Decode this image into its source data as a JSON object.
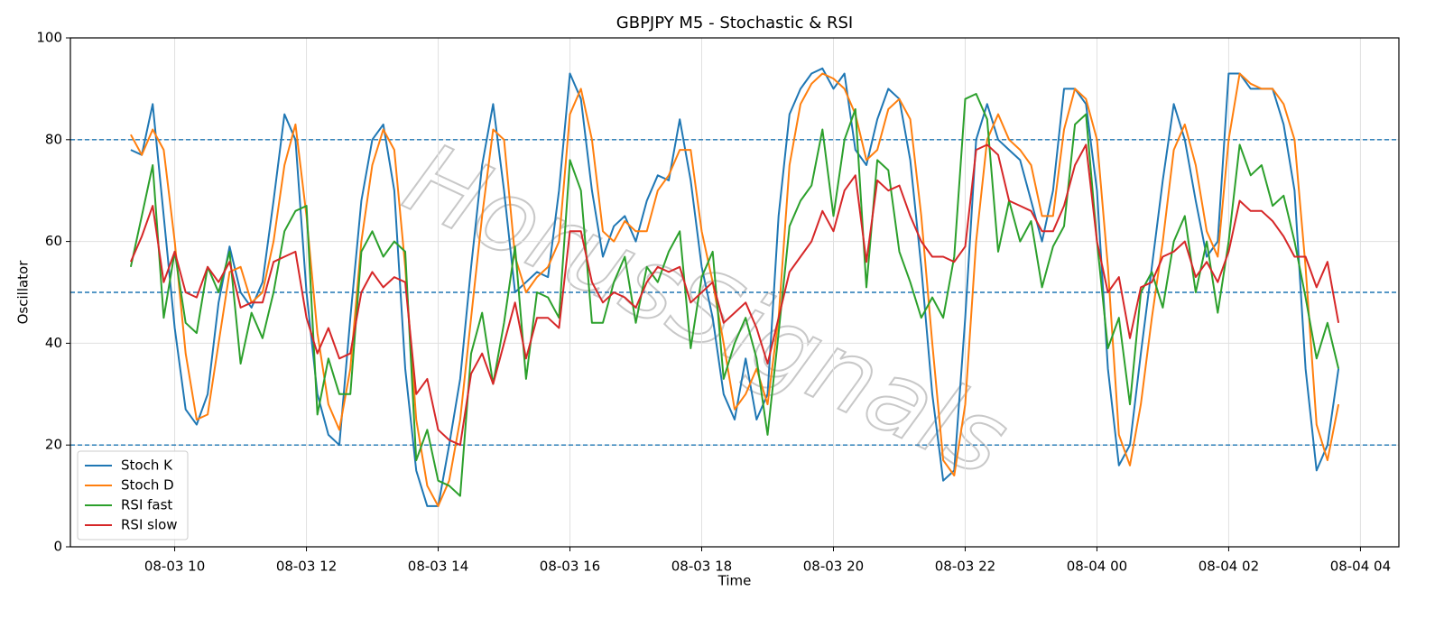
{
  "chart_data": {
    "type": "line",
    "title": "GBPJPY M5 - Stochastic & RSI",
    "xlabel": "Time",
    "ylabel": "Oscillator",
    "watermark": "HorusSignals",
    "x": [
      "08-03 09:20",
      "08-03 09:30",
      "08-03 09:40",
      "08-03 09:50",
      "08-03 10:00",
      "08-03 10:10",
      "08-03 10:20",
      "08-03 10:30",
      "08-03 10:40",
      "08-03 10:50",
      "08-03 11:00",
      "08-03 11:10",
      "08-03 11:20",
      "08-03 11:30",
      "08-03 11:40",
      "08-03 11:50",
      "08-03 12:00",
      "08-03 12:10",
      "08-03 12:20",
      "08-03 12:30",
      "08-03 12:40",
      "08-03 12:50",
      "08-03 13:00",
      "08-03 13:10",
      "08-03 13:20",
      "08-03 13:30",
      "08-03 13:40",
      "08-03 13:50",
      "08-03 14:00",
      "08-03 14:10",
      "08-03 14:20",
      "08-03 14:30",
      "08-03 14:40",
      "08-03 14:50",
      "08-03 15:00",
      "08-03 15:10",
      "08-03 15:20",
      "08-03 15:30",
      "08-03 15:40",
      "08-03 15:50",
      "08-03 16:00",
      "08-03 16:10",
      "08-03 16:20",
      "08-03 16:30",
      "08-03 16:40",
      "08-03 16:50",
      "08-03 17:00",
      "08-03 17:10",
      "08-03 17:20",
      "08-03 17:30",
      "08-03 17:40",
      "08-03 17:50",
      "08-03 18:00",
      "08-03 18:10",
      "08-03 18:20",
      "08-03 18:30",
      "08-03 18:40",
      "08-03 18:50",
      "08-03 19:00",
      "08-03 19:10",
      "08-03 19:20",
      "08-03 19:30",
      "08-03 19:40",
      "08-03 19:50",
      "08-03 20:00",
      "08-03 20:10",
      "08-03 20:20",
      "08-03 20:30",
      "08-03 20:40",
      "08-03 20:50",
      "08-03 21:00",
      "08-03 21:10",
      "08-03 21:20",
      "08-03 21:30",
      "08-03 21:40",
      "08-03 21:50",
      "08-03 22:00",
      "08-03 22:10",
      "08-03 22:20",
      "08-03 22:30",
      "08-03 22:40",
      "08-03 22:50",
      "08-03 23:00",
      "08-03 23:10",
      "08-03 23:20",
      "08-03 23:30",
      "08-03 23:40",
      "08-03 23:50",
      "08-04 00:00",
      "08-04 00:10",
      "08-04 00:20",
      "08-04 00:30",
      "08-04 00:40",
      "08-04 00:50",
      "08-04 01:00",
      "08-04 01:10",
      "08-04 01:20",
      "08-04 01:30",
      "08-04 01:40",
      "08-04 01:50",
      "08-04 02:00",
      "08-04 02:10",
      "08-04 02:20",
      "08-04 02:30",
      "08-04 02:40",
      "08-04 02:50",
      "08-04 03:00",
      "08-04 03:10",
      "08-04 03:20",
      "08-04 03:30",
      "08-04 03:40"
    ],
    "series": [
      {
        "name": "Stoch K",
        "color": "#1f77b4",
        "values": [
          78,
          77,
          87,
          65,
          43,
          27,
          24,
          30,
          48,
          59,
          50,
          47,
          52,
          68,
          85,
          80,
          50,
          30,
          22,
          20,
          45,
          68,
          80,
          83,
          70,
          35,
          15,
          8,
          8,
          20,
          33,
          55,
          75,
          87,
          70,
          50,
          52,
          54,
          53,
          70,
          93,
          88,
          70,
          57,
          63,
          65,
          60,
          68,
          73,
          72,
          84,
          72,
          55,
          45,
          30,
          25,
          37,
          25,
          30,
          65,
          85,
          90,
          93,
          94,
          90,
          93,
          78,
          75,
          84,
          90,
          88,
          76,
          55,
          30,
          13,
          15,
          45,
          80,
          87,
          80,
          78,
          76,
          68,
          60,
          70,
          90,
          90,
          87,
          70,
          35,
          16,
          20,
          38,
          55,
          72,
          87,
          80,
          68,
          57,
          60,
          93,
          93,
          90,
          90,
          90,
          83,
          70,
          35,
          15,
          20,
          35
        ]
      },
      {
        "name": "Stoch D",
        "color": "#ff7f0e",
        "values": [
          81,
          77,
          82,
          78,
          60,
          38,
          25,
          26,
          40,
          54,
          55,
          48,
          50,
          60,
          75,
          83,
          65,
          42,
          28,
          23,
          35,
          60,
          75,
          82,
          78,
          55,
          25,
          12,
          8,
          13,
          25,
          45,
          65,
          82,
          80,
          57,
          50,
          53,
          55,
          60,
          85,
          90,
          80,
          62,
          60,
          64,
          62,
          62,
          70,
          73,
          78,
          78,
          62,
          52,
          40,
          27,
          30,
          35,
          28,
          45,
          75,
          87,
          91,
          93,
          92,
          90,
          85,
          76,
          78,
          86,
          88,
          84,
          65,
          40,
          17,
          14,
          28,
          60,
          80,
          85,
          80,
          78,
          75,
          65,
          65,
          82,
          90,
          88,
          80,
          55,
          22,
          16,
          28,
          45,
          60,
          78,
          83,
          75,
          62,
          57,
          80,
          93,
          91,
          90,
          90,
          87,
          80,
          55,
          24,
          17,
          28
        ]
      },
      {
        "name": "RSI fast",
        "color": "#2ca02c",
        "values": [
          55,
          65,
          75,
          45,
          58,
          44,
          42,
          55,
          50,
          58,
          36,
          46,
          41,
          50,
          62,
          66,
          67,
          26,
          37,
          30,
          30,
          58,
          62,
          57,
          60,
          58,
          17,
          23,
          13,
          12,
          10,
          38,
          46,
          32,
          44,
          59,
          33,
          50,
          49,
          45,
          76,
          70,
          44,
          44,
          52,
          57,
          44,
          55,
          52,
          58,
          62,
          39,
          53,
          58,
          33,
          40,
          45,
          37,
          22,
          42,
          63,
          68,
          71,
          82,
          65,
          80,
          86,
          51,
          76,
          74,
          58,
          52,
          45,
          49,
          45,
          57,
          88,
          89,
          84,
          58,
          68,
          60,
          64,
          51,
          59,
          63,
          83,
          85,
          60,
          39,
          45,
          28,
          50,
          54,
          47,
          60,
          65,
          50,
          60,
          46,
          60,
          79,
          73,
          75,
          67,
          69,
          60,
          49,
          37,
          44,
          35
        ]
      },
      {
        "name": "RSI slow",
        "color": "#d62728",
        "values": [
          56,
          61,
          67,
          52,
          58,
          50,
          49,
          55,
          52,
          56,
          47,
          48,
          48,
          56,
          57,
          58,
          45,
          38,
          43,
          37,
          38,
          50,
          54,
          51,
          53,
          52,
          30,
          33,
          23,
          21,
          20,
          34,
          38,
          32,
          40,
          48,
          37,
          45,
          45,
          43,
          62,
          62,
          52,
          48,
          50,
          49,
          47,
          52,
          55,
          54,
          55,
          48,
          50,
          52,
          44,
          46,
          48,
          43,
          36,
          45,
          54,
          57,
          60,
          66,
          62,
          70,
          73,
          56,
          72,
          70,
          71,
          65,
          60,
          57,
          57,
          56,
          59,
          78,
          79,
          77,
          68,
          67,
          66,
          62,
          62,
          67,
          75,
          79,
          60,
          50,
          53,
          41,
          51,
          52,
          57,
          58,
          60,
          53,
          56,
          52,
          58,
          68,
          66,
          66,
          64,
          61,
          57,
          57,
          51,
          56,
          44
        ]
      }
    ],
    "hlines": [
      80,
      50,
      20
    ],
    "hline_color": "#1f77b4",
    "xlim": [
      "08-03 08:25",
      "08-04 04:35"
    ],
    "xticks": [
      {
        "value": "08-03 10:00",
        "label": "08-03 10"
      },
      {
        "value": "08-03 12:00",
        "label": "08-03 12"
      },
      {
        "value": "08-03 14:00",
        "label": "08-03 14"
      },
      {
        "value": "08-03 16:00",
        "label": "08-03 16"
      },
      {
        "value": "08-03 18:00",
        "label": "08-03 18"
      },
      {
        "value": "08-03 20:00",
        "label": "08-03 20"
      },
      {
        "value": "08-03 22:00",
        "label": "08-03 22"
      },
      {
        "value": "08-04 00:00",
        "label": "08-04 00"
      },
      {
        "value": "08-04 02:00",
        "label": "08-04 02"
      },
      {
        "value": "08-04 04:00",
        "label": "08-04 04"
      }
    ],
    "ylim": [
      0,
      100
    ],
    "yticks": [
      0,
      20,
      40,
      60,
      80,
      100
    ],
    "grid": true,
    "legend": "lower left"
  }
}
